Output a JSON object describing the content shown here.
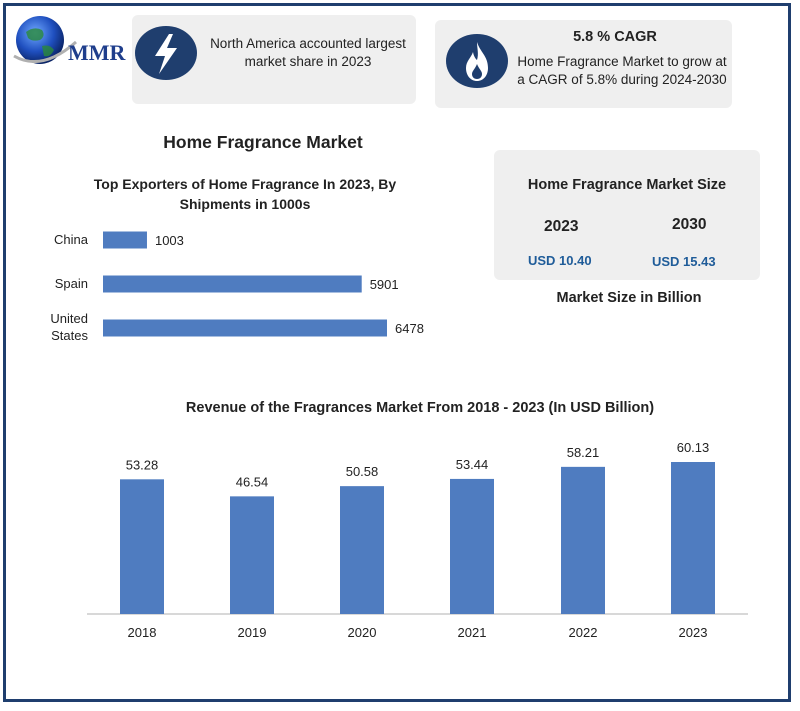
{
  "brand": {
    "logo_text": "MMR"
  },
  "highlights": {
    "share_text": "North America accounted largest market share in 2023",
    "share_icon": "lightning-icon",
    "cagr_title": "5.8 % CAGR",
    "cagr_text": "Home Fragrance Market to grow at a CAGR of 5.8% during 2024-2030",
    "cagr_icon": "flame-icon"
  },
  "main_title": "Home Fragrance Market",
  "market_size": {
    "title": "Home Fragrance Market Size",
    "year_a": "2023",
    "value_a": "USD 10.40",
    "year_b": "2030",
    "value_b": "USD 15.43",
    "caption": "Market Size in Billion"
  },
  "colors": {
    "bar": "#4f7cc0",
    "frame": "#1f3e6e",
    "value_text": "#1f5c99"
  },
  "chart_data": [
    {
      "type": "bar",
      "orientation": "horizontal",
      "title": "Top Exporters of Home Fragrance In 2023, By Shipments in 1000s",
      "categories": [
        "China",
        "Spain",
        "United States"
      ],
      "values": [
        1003,
        5901,
        6478
      ],
      "xlim": [
        0,
        6478
      ],
      "grid": false,
      "legend": "none"
    },
    {
      "type": "bar",
      "orientation": "vertical",
      "title": "Revenue of the Fragrances Market  From 2018 - 2023 (In USD Billion)",
      "categories": [
        "2018",
        "2019",
        "2020",
        "2021",
        "2022",
        "2023"
      ],
      "values": [
        53.28,
        46.54,
        50.58,
        53.44,
        58.21,
        60.13
      ],
      "ylim": [
        0,
        60.13
      ],
      "grid": false,
      "legend": "none"
    }
  ]
}
